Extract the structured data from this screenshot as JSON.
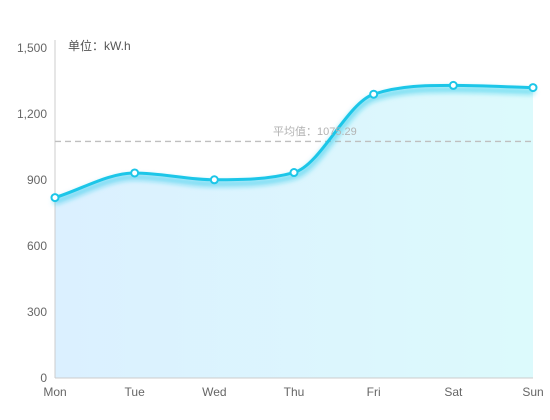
{
  "chart_data": {
    "type": "area",
    "unit_label": "单位：kW.h",
    "categories": [
      "Mon",
      "Tue",
      "Wed",
      "Thu",
      "Fri",
      "Sat",
      "Sun"
    ],
    "series": [
      {
        "values": [
          820,
          932,
          901,
          934,
          1290,
          1330,
          1320
        ]
      }
    ],
    "average": {
      "label": "平均值：1075.29",
      "value": 1075.29
    },
    "yticks": [
      "0",
      "300",
      "600",
      "900",
      "1,200",
      "1,500"
    ],
    "ylim": [
      0,
      1500
    ],
    "smooth": true,
    "grid": false,
    "legend": "none"
  },
  "colors": {
    "line": "#1cc6e8",
    "marker_fill": "#ffffff",
    "area_left": "#dbf0ff",
    "area_right": "#dcfafc",
    "average_line": "#bfbfbf",
    "axis": "#cccccc"
  }
}
